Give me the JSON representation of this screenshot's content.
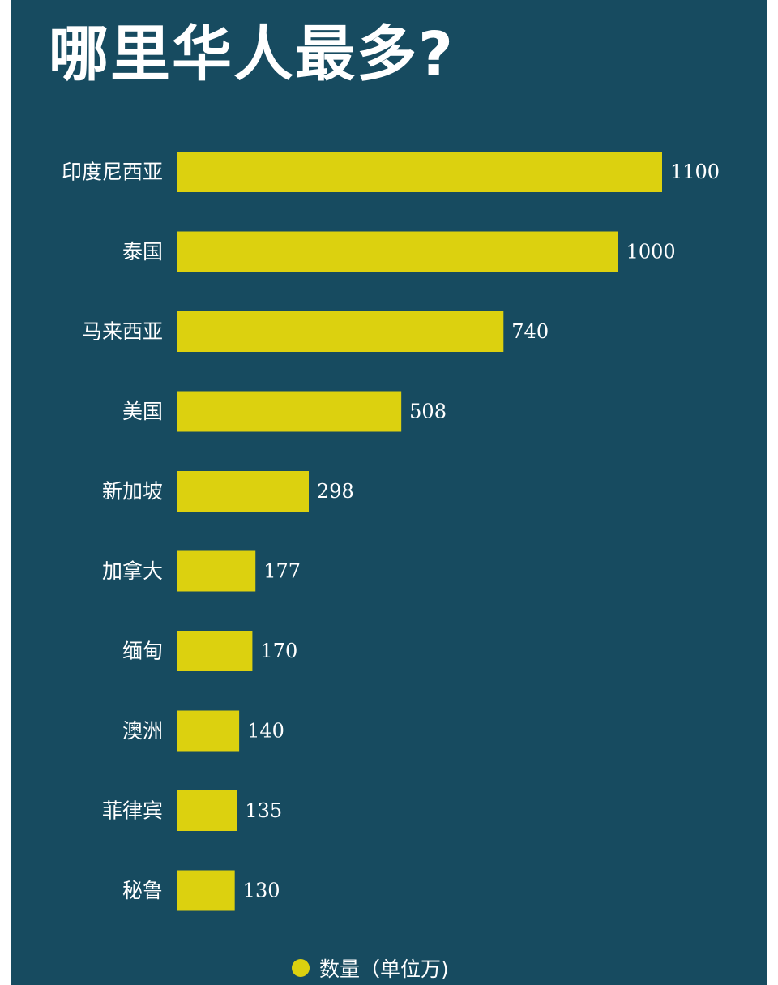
{
  "title": "哪里华人最多?",
  "colors": {
    "background": "#174b60",
    "bar": "#dcd10f",
    "text": "#ffffff"
  },
  "chart_data": {
    "type": "bar",
    "orientation": "horizontal",
    "categories": [
      "印度尼西亚",
      "泰国",
      "马来西亚",
      "美国",
      "新加坡",
      "加拿大",
      "缅甸",
      "澳洲",
      "菲律宾",
      "秘鲁"
    ],
    "series": [
      {
        "name": "数量（单位万)",
        "values": [
          1100,
          1000,
          740,
          508,
          298,
          177,
          170,
          140,
          135,
          130
        ]
      }
    ],
    "value_labels": [
      "1100",
      "1000",
      "740",
      "508",
      "298",
      "177",
      "170",
      "140",
      "135",
      "130"
    ],
    "xlim": [
      0,
      1100
    ],
    "grid": false,
    "legend_position": "bottom-center"
  },
  "legend": {
    "label": "数量（单位万)"
  }
}
